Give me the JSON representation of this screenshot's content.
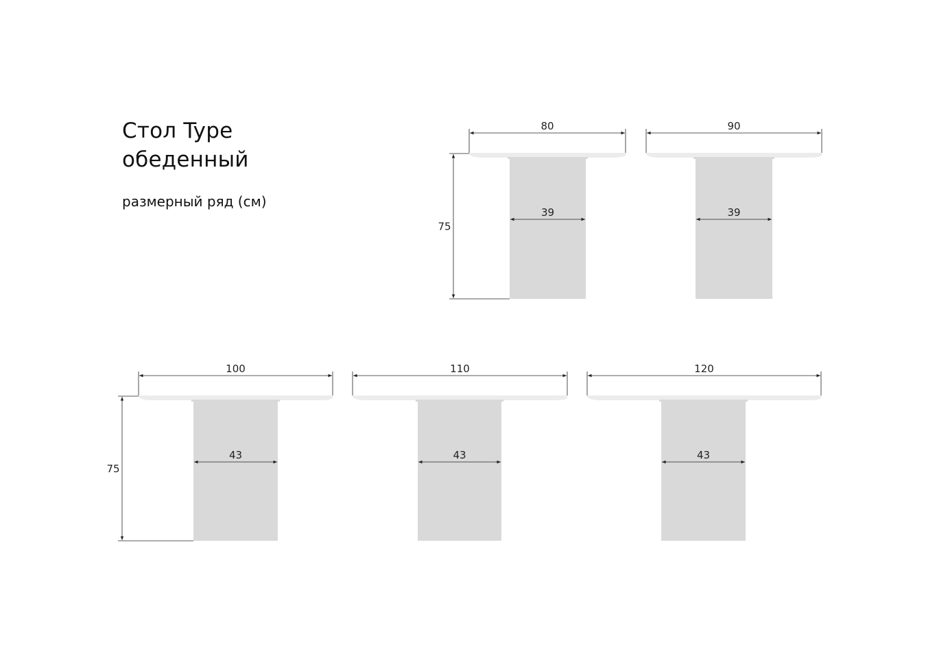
{
  "title_line1": "Стол Type",
  "title_line2": "обеденный",
  "subtitle": "размерный ряд (см)",
  "colors": {
    "tabletop": "#ececec",
    "leg": "#d9d9d9",
    "dimension_line": "#222222"
  },
  "tables": [
    {
      "width": "80",
      "leg_width": "39",
      "height": "75",
      "show_height": true
    },
    {
      "width": "90",
      "leg_width": "39",
      "height": "75",
      "show_height": false
    },
    {
      "width": "100",
      "leg_width": "43",
      "height": "75",
      "show_height": true
    },
    {
      "width": "110",
      "leg_width": "43",
      "height": "75",
      "show_height": false
    },
    {
      "width": "120",
      "leg_width": "43",
      "height": "75",
      "show_height": false
    }
  ]
}
